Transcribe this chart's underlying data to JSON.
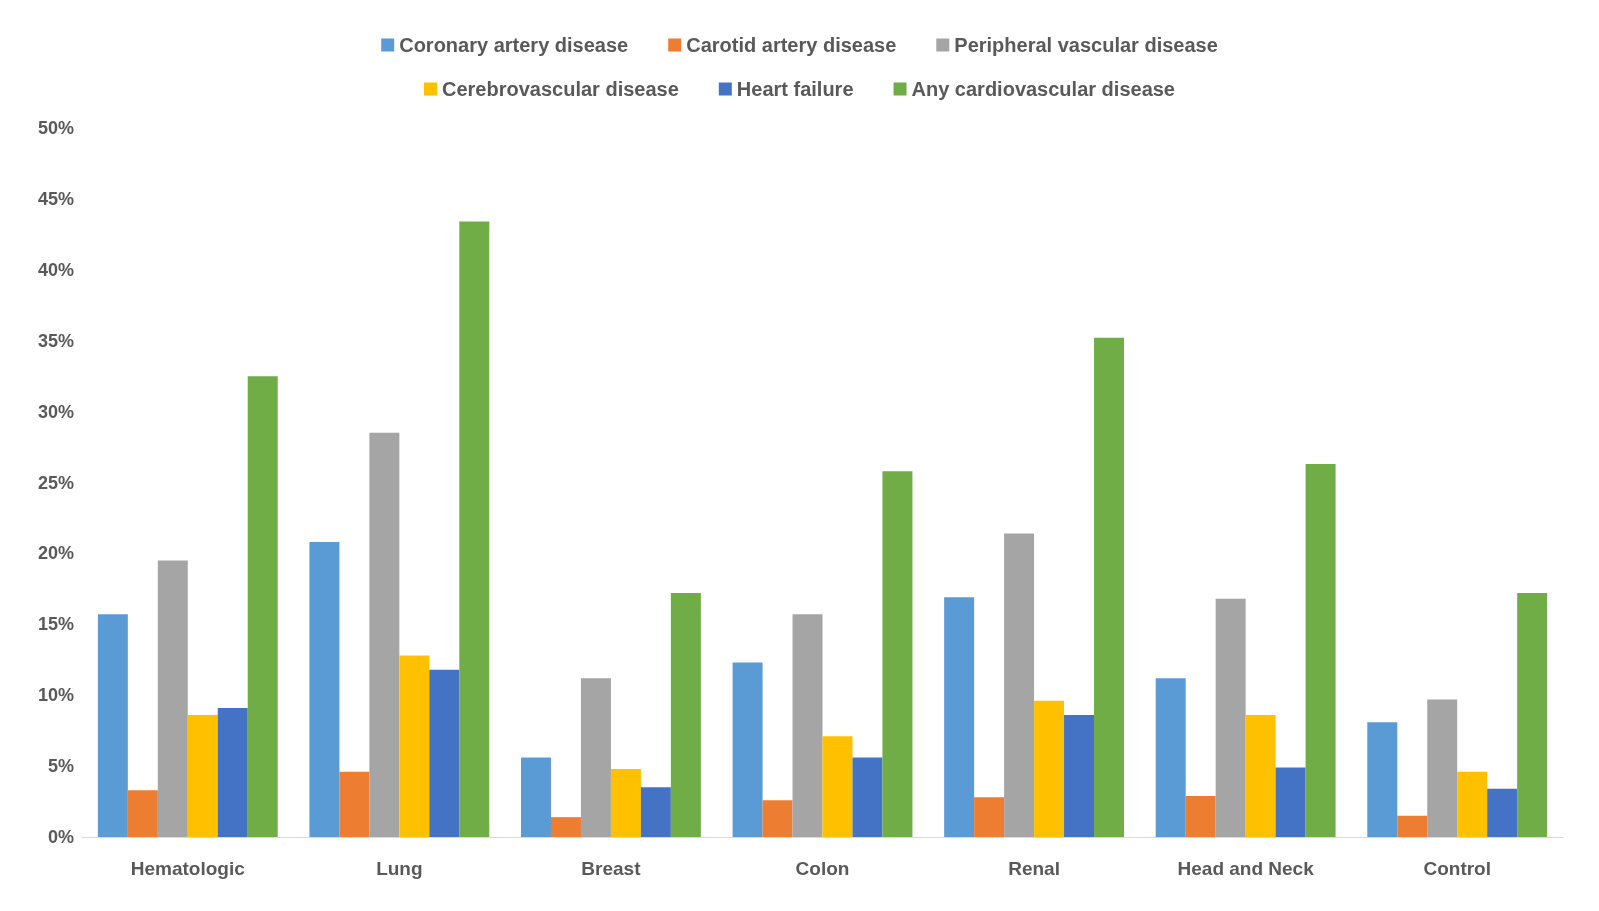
{
  "chart_data": {
    "type": "bar",
    "categories": [
      "Hematologic",
      "Lung",
      "Breast",
      "Colon",
      "Renal",
      "Head and Neck",
      "Control"
    ],
    "series": [
      {
        "name": "Coronary artery disease",
        "color": "#5b9bd5",
        "values": [
          15.7,
          20.8,
          5.6,
          12.3,
          16.9,
          11.2,
          8.1
        ]
      },
      {
        "name": "Carotid artery disease",
        "color": "#ed7d31",
        "values": [
          3.3,
          4.6,
          1.4,
          2.6,
          2.8,
          2.9,
          1.5
        ]
      },
      {
        "name": "Peripheral vascular disease",
        "color": "#a5a5a5",
        "values": [
          19.5,
          28.5,
          11.2,
          15.7,
          21.4,
          16.8,
          9.7
        ]
      },
      {
        "name": "Cerebrovascular disease",
        "color": "#ffc000",
        "values": [
          8.6,
          12.8,
          4.8,
          7.1,
          9.6,
          8.6,
          4.6
        ]
      },
      {
        "name": "Heart failure",
        "color": "#4472c4",
        "values": [
          9.1,
          11.8,
          3.5,
          5.6,
          8.6,
          4.9,
          3.4
        ]
      },
      {
        "name": "Any cardiovascular disease",
        "color": "#70ad47",
        "values": [
          32.5,
          43.4,
          17.2,
          25.8,
          35.2,
          26.3,
          17.2
        ]
      }
    ],
    "ylim": [
      0,
      50
    ],
    "yticks": [
      {
        "value": 0,
        "label": "0%"
      },
      {
        "value": 5,
        "label": "5%"
      },
      {
        "value": 10,
        "label": "10%"
      },
      {
        "value": 15,
        "label": "15%"
      },
      {
        "value": 20,
        "label": "20%"
      },
      {
        "value": 25,
        "label": "25%"
      },
      {
        "value": 30,
        "label": "30%"
      },
      {
        "value": 35,
        "label": "35%"
      },
      {
        "value": 40,
        "label": "40%"
      },
      {
        "value": 45,
        "label": "45%"
      },
      {
        "value": 50,
        "label": "50%"
      }
    ],
    "grid": false,
    "legend": "top"
  }
}
